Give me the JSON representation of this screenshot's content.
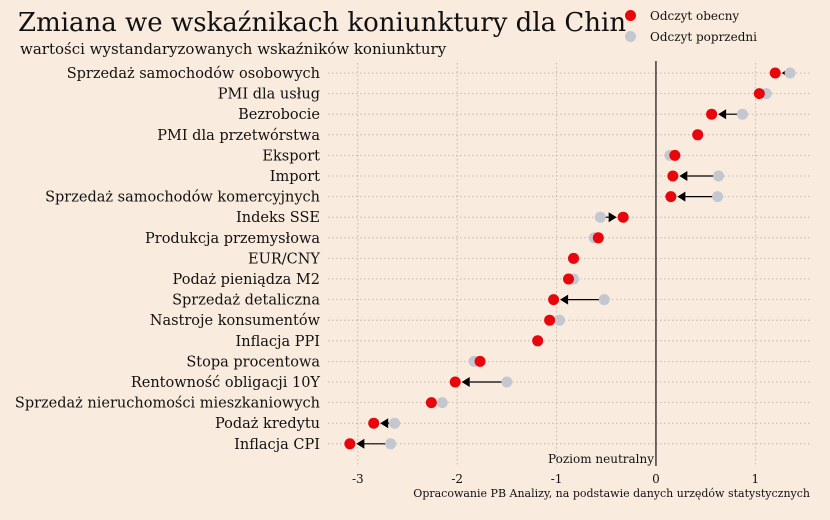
{
  "header": {
    "title": "Zmiana we wskaźnikach koniunktury dla Chin",
    "subtitle": "wartości wystandaryzowanych wskaźników koniunktury"
  },
  "legend": {
    "current_label": "Odczyt obecny",
    "previous_label": "Odczyt poprzedni",
    "current_color": "#E8050C",
    "previous_color": "#C4C6D0"
  },
  "annotations": {
    "neutral_label": "Poziom neutralny",
    "source": "Opracowanie PB Analizy, na podstawie danych urzędów statystycznych"
  },
  "chart_data": {
    "type": "dot-arrow",
    "title": "Zmiana we wskaźnikach koniunktury dla Chin",
    "subtitle": "wartości wystandaryzowanych wskaźników koniunktury",
    "xlim": [
      -3.3,
      1.55
    ],
    "xticks": [
      -3,
      -2,
      -1,
      0,
      1
    ],
    "grid": true,
    "legend_position": "top-right",
    "reference_line": {
      "x": 0,
      "label": "Poziom neutralny"
    },
    "series": [
      {
        "name": "Odczyt obecny",
        "color": "#E8050C"
      },
      {
        "name": "Odczyt poprzedni",
        "color": "#C4C6D0"
      }
    ],
    "categories": [
      "Sprzedaż samochodów osobowych",
      "PMI dla usług",
      "Bezrobocie",
      "PMI dla przetwórstwa",
      "Eksport",
      "Import",
      "Sprzedaż samochodów komercyjnych",
      "Indeks SSE",
      "Produkcja przemysłowa",
      "EUR/CNY",
      "Podaż pieniądza M2",
      "Sprzedaż detaliczna",
      "Nastroje konsumentów",
      "Inflacja PPI",
      "Stopa procentowa",
      "Rentowność obligacji 10Y",
      "Sprzedaż nieruchomości mieszkaniowych",
      "Podaż kredytu",
      "Inflacja CPI"
    ],
    "current": [
      1.2,
      1.04,
      0.56,
      0.42,
      0.19,
      0.17,
      0.15,
      -0.33,
      -0.58,
      -0.83,
      -0.88,
      -1.03,
      -1.07,
      -1.19,
      -1.77,
      -2.02,
      -2.26,
      -2.84,
      -3.08
    ],
    "previous": [
      1.35,
      1.11,
      0.87,
      0.42,
      0.14,
      0.63,
      0.62,
      -0.56,
      -0.62,
      -0.82,
      -0.83,
      -0.52,
      -0.97,
      -1.19,
      -1.83,
      -1.5,
      -2.15,
      -2.63,
      -2.67
    ],
    "arrows": [
      true,
      false,
      true,
      false,
      false,
      true,
      true,
      true,
      false,
      false,
      false,
      true,
      false,
      false,
      false,
      true,
      false,
      true,
      true
    ]
  }
}
